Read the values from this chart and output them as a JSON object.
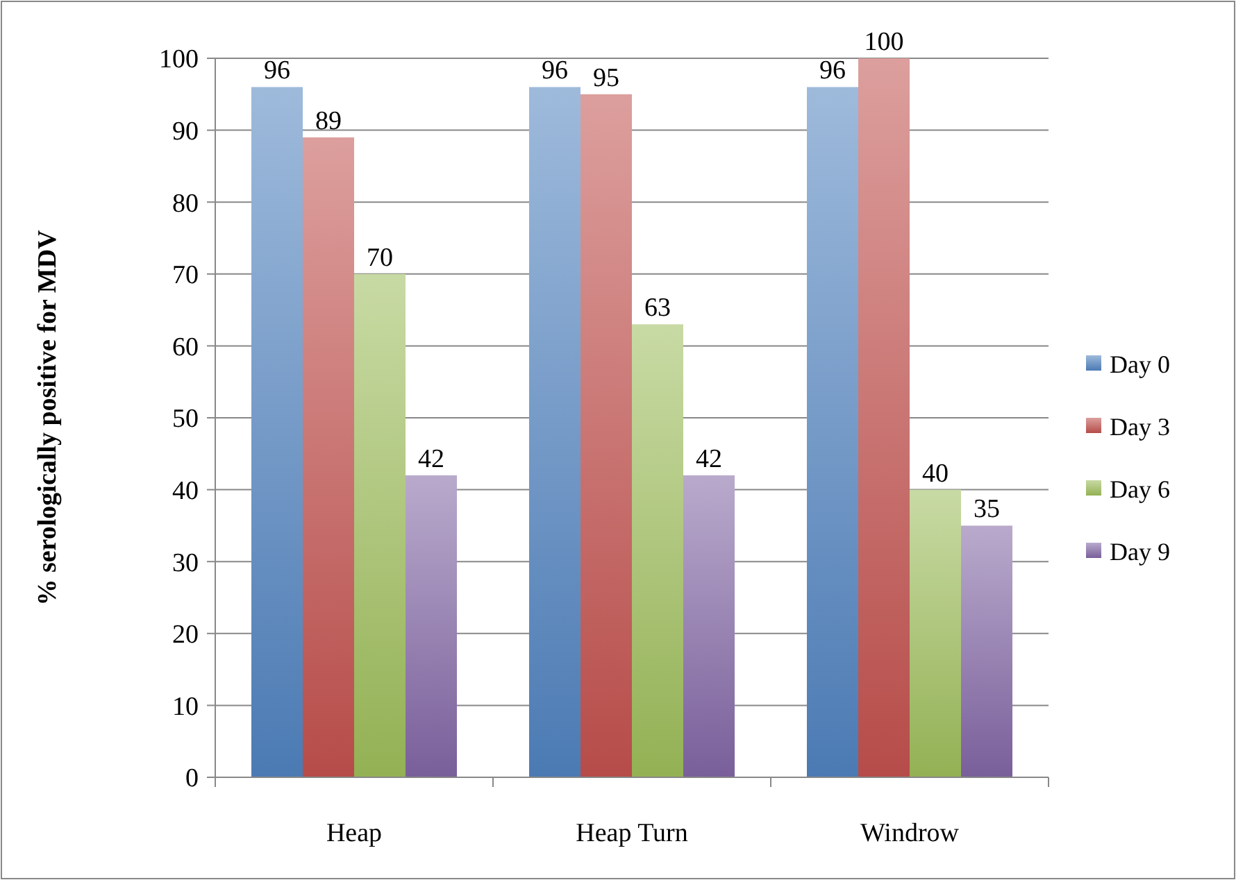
{
  "chart_data": {
    "type": "bar",
    "ylabel": "% serologically positive for MDV",
    "categories": [
      "Heap",
      "Heap Turn",
      "Windrow"
    ],
    "series": [
      {
        "name": "Day 0",
        "color": "#4f81bd",
        "values": [
          96,
          96,
          96
        ]
      },
      {
        "name": "Day 3",
        "color": "#c0504d",
        "values": [
          89,
          95,
          100
        ]
      },
      {
        "name": "Day 6",
        "color": "#9bbb59",
        "values": [
          70,
          63,
          40
        ]
      },
      {
        "name": "Day 9",
        "color": "#8064a2",
        "values": [
          42,
          42,
          35
        ]
      }
    ],
    "ylim": [
      0,
      100
    ],
    "yticks": [
      0,
      10,
      20,
      30,
      40,
      50,
      60,
      70,
      80,
      90,
      100
    ],
    "grid": "y",
    "legend": "right",
    "data_labels": true
  }
}
